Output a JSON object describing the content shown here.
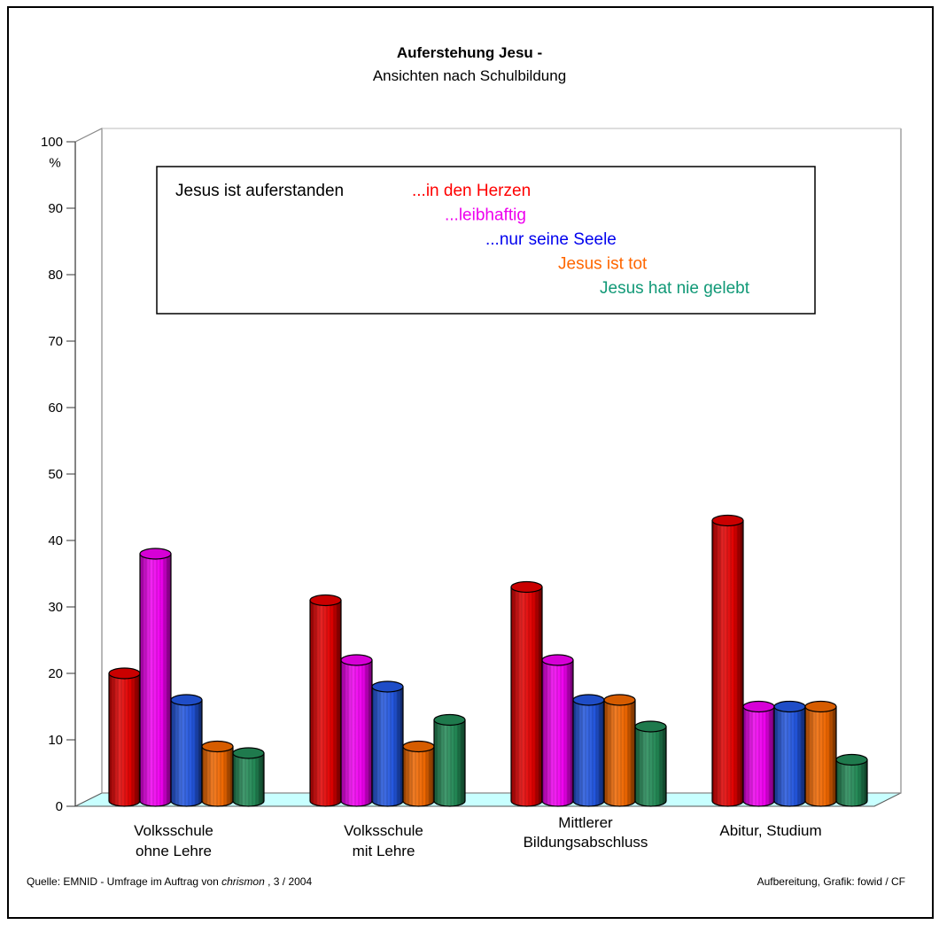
{
  "chart_data": {
    "type": "bar",
    "title": "Auferstehung Jesu -",
    "subtitle": "Ansichten nach Schulbildung",
    "ylabel": "%",
    "ylim": [
      0,
      100
    ],
    "yticks": [
      0,
      10,
      20,
      30,
      40,
      50,
      60,
      70,
      80,
      90,
      100
    ],
    "categories": [
      [
        "Volksschule",
        "ohne Lehre"
      ],
      [
        "Volksschule",
        "mit Lehre"
      ],
      [
        "Mittlerer",
        "Bildungsabschluss"
      ],
      [
        "Abitur, Studium"
      ]
    ],
    "legend_title": "Jesus ist auferstanden",
    "series": [
      {
        "name": "...in den Herzen",
        "color": "#e00000",
        "values": [
          20,
          31,
          33,
          43
        ]
      },
      {
        "name": "...leibhaftig",
        "color": "#ee00ee",
        "values": [
          38,
          22,
          22,
          15
        ]
      },
      {
        "name": "...nur seine Seele",
        "color": "#2255dd",
        "values": [
          16,
          18,
          16,
          15
        ]
      },
      {
        "name": "Jesus ist tot",
        "color": "#ee6600",
        "values": [
          9,
          9,
          16,
          15
        ]
      },
      {
        "name": "Jesus hat nie gelebt",
        "color": "#228855",
        "values": [
          8,
          13,
          12,
          7
        ]
      }
    ],
    "legend_colors": [
      "#ff0000",
      "#ee00ee",
      "#0000ee",
      "#ff6600",
      "#119977"
    ],
    "floor_color": "#c8ffff",
    "grid": false
  },
  "footer": {
    "source_prefix": "Quelle: EMNID - Umfrage im Auftrag von ",
    "source_italic": "chrismon",
    "source_suffix": " , 3 / 2004",
    "credit": "Aufbereitung, Grafik: fowid / CF"
  }
}
